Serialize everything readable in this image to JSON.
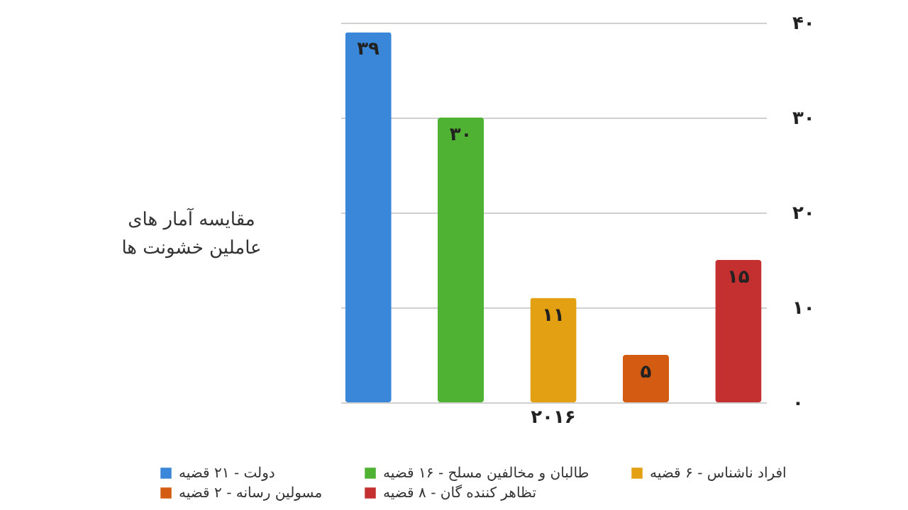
{
  "chart_data": {
    "type": "bar",
    "title": "مقایسه آمار های عاملین خشونت ها",
    "categories": [
      "۲۰۱۶"
    ],
    "series": [
      {
        "name": "دولت - ۲۱ قضیه",
        "color": "#3a86d8",
        "values": [
          39
        ],
        "value_labels": [
          "۳۹"
        ]
      },
      {
        "name": "طالبان و مخالفین مسلح - ۱۶ قضیه",
        "color": "#4fb233",
        "values": [
          30
        ],
        "value_labels": [
          "۳۰"
        ]
      },
      {
        "name": "افراد ناشناس - ۶ قضیه",
        "color": "#e2a012",
        "values": [
          11
        ],
        "value_labels": [
          "۱۱"
        ]
      },
      {
        "name": "مسولین رسانه - ۲ قضیه",
        "color": "#d35c12",
        "values": [
          5
        ],
        "value_labels": [
          "۵"
        ]
      },
      {
        "name": "تظاهر کننده گان - ۸ قضیه",
        "color": "#c4302f",
        "values": [
          15
        ],
        "value_labels": [
          "۱۵"
        ]
      }
    ],
    "ylim": [
      0,
      40
    ],
    "yticks": [
      {
        "value": 0,
        "label": "۰"
      },
      {
        "value": 10,
        "label": "۱۰"
      },
      {
        "value": 20,
        "label": "۲۰"
      },
      {
        "value": 30,
        "label": "۳۰"
      },
      {
        "value": 40,
        "label": "۴۰"
      }
    ],
    "grid": "y",
    "legend": "bottom"
  }
}
